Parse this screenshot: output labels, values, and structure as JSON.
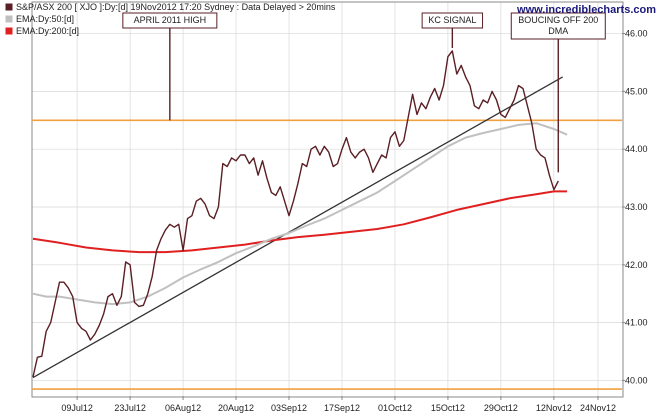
{
  "colors": {
    "price": "#5a1f24",
    "ema50": "#c0c0c0",
    "ema200": "#e02020",
    "hline": "#f0a040",
    "trend": "#333333",
    "grid": "#d8d8d8"
  },
  "chart_data": {
    "type": "line",
    "ylim": [
      39.8,
      46.2
    ],
    "xlim": [
      0,
      128
    ],
    "y_axis_position": "right",
    "grid": true,
    "legend_position": "top-left",
    "legend": [
      {
        "key": "price",
        "label": "S&P/ASX 200 [ XJO ]:Dy:[d]  19Nov2012 17:20  Sydney : Data Delayed > 20mins"
      },
      {
        "key": "ema50",
        "label": "EMA:Dy:50:[d]"
      },
      {
        "key": "ema200",
        "label": "EMA:Dy:200:[d]"
      }
    ],
    "watermark": "www.incrediblecharts.com",
    "y_ticks": [
      {
        "v": 40,
        "label": "40.00"
      },
      {
        "v": 41,
        "label": "41.00"
      },
      {
        "v": 42,
        "label": "42.00"
      },
      {
        "v": 43,
        "label": "43.00"
      },
      {
        "v": 44,
        "label": "44.00"
      },
      {
        "v": 45,
        "label": "45.00"
      },
      {
        "v": 46,
        "label": "46.00"
      }
    ],
    "x_ticks": [
      {
        "x": 10,
        "label": "09Jul12"
      },
      {
        "x": 22,
        "label": "23Jul12"
      },
      {
        "x": 34,
        "label": "06Aug12"
      },
      {
        "x": 46,
        "label": "20Aug12"
      },
      {
        "x": 58,
        "label": "03Sep12"
      },
      {
        "x": 70,
        "label": "17Sep12"
      },
      {
        "x": 82,
        "label": "01Oct12"
      },
      {
        "x": 94,
        "label": "15Oct12"
      },
      {
        "x": 106,
        "label": "29Oct12"
      },
      {
        "x": 118,
        "label": "12Nov12"
      },
      {
        "x": 128,
        "label": "24Nov12"
      }
    ],
    "series": [
      {
        "key": "price",
        "points": [
          [
            0,
            40.06
          ],
          [
            1,
            40.4
          ],
          [
            2,
            40.42
          ],
          [
            3,
            40.85
          ],
          [
            4,
            41.0
          ],
          [
            5,
            41.35
          ],
          [
            6,
            41.7
          ],
          [
            7,
            41.7
          ],
          [
            8,
            41.6
          ],
          [
            9,
            41.45
          ],
          [
            10,
            41.0
          ],
          [
            11,
            40.9
          ],
          [
            12,
            40.85
          ],
          [
            13,
            40.7
          ],
          [
            14,
            40.8
          ],
          [
            15,
            40.95
          ],
          [
            16,
            41.15
          ],
          [
            17,
            41.45
          ],
          [
            18,
            41.5
          ],
          [
            19,
            41.3
          ],
          [
            20,
            41.45
          ],
          [
            21,
            42.05
          ],
          [
            22,
            42.0
          ],
          [
            23,
            41.35
          ],
          [
            24,
            41.28
          ],
          [
            25,
            41.3
          ],
          [
            26,
            41.5
          ],
          [
            27,
            41.8
          ],
          [
            28,
            42.25
          ],
          [
            29,
            42.45
          ],
          [
            30,
            42.6
          ],
          [
            31,
            42.7
          ],
          [
            32,
            42.65
          ],
          [
            33,
            42.7
          ],
          [
            34,
            42.25
          ],
          [
            35,
            42.8
          ],
          [
            36,
            42.85
          ],
          [
            37,
            43.1
          ],
          [
            38,
            43.15
          ],
          [
            39,
            43.05
          ],
          [
            40,
            42.85
          ],
          [
            41,
            42.8
          ],
          [
            42,
            43.0
          ],
          [
            43,
            43.75
          ],
          [
            44,
            43.7
          ],
          [
            45,
            43.85
          ],
          [
            46,
            43.8
          ],
          [
            47,
            43.9
          ],
          [
            48,
            43.9
          ],
          [
            49,
            43.75
          ],
          [
            50,
            43.85
          ],
          [
            51,
            43.55
          ],
          [
            52,
            43.8
          ],
          [
            53,
            43.5
          ],
          [
            54,
            43.25
          ],
          [
            55,
            43.2
          ],
          [
            56,
            43.35
          ],
          [
            57,
            43.1
          ],
          [
            58,
            42.85
          ],
          [
            59,
            43.1
          ],
          [
            60,
            43.4
          ],
          [
            61,
            43.75
          ],
          [
            62,
            43.7
          ],
          [
            63,
            44.0
          ],
          [
            64,
            44.05
          ],
          [
            65,
            43.9
          ],
          [
            66,
            44.05
          ],
          [
            67,
            43.95
          ],
          [
            68,
            43.7
          ],
          [
            69,
            43.75
          ],
          [
            70,
            44.0
          ],
          [
            71,
            44.2
          ],
          [
            72,
            43.95
          ],
          [
            73,
            43.85
          ],
          [
            74,
            43.95
          ],
          [
            75,
            44.0
          ],
          [
            76,
            43.85
          ],
          [
            77,
            43.6
          ],
          [
            78,
            43.75
          ],
          [
            79,
            43.9
          ],
          [
            80,
            43.85
          ],
          [
            81,
            44.2
          ],
          [
            82,
            44.3
          ],
          [
            83,
            44.05
          ],
          [
            84,
            44.15
          ],
          [
            85,
            44.55
          ],
          [
            86,
            44.95
          ],
          [
            87,
            44.6
          ],
          [
            88,
            44.8
          ],
          [
            89,
            44.7
          ],
          [
            90,
            44.9
          ],
          [
            91,
            45.05
          ],
          [
            92,
            44.85
          ],
          [
            93,
            45.1
          ],
          [
            94,
            45.6
          ],
          [
            95,
            45.7
          ],
          [
            96,
            45.3
          ],
          [
            97,
            45.45
          ],
          [
            98,
            45.25
          ],
          [
            99,
            45.1
          ],
          [
            100,
            44.75
          ],
          [
            101,
            44.7
          ],
          [
            102,
            44.85
          ],
          [
            103,
            44.8
          ],
          [
            104,
            45.0
          ],
          [
            105,
            44.85
          ],
          [
            106,
            44.6
          ],
          [
            107,
            44.55
          ],
          [
            108,
            44.7
          ],
          [
            109,
            44.85
          ],
          [
            110,
            45.1
          ],
          [
            111,
            45.05
          ],
          [
            112,
            44.75
          ],
          [
            113,
            44.45
          ],
          [
            114,
            44.0
          ],
          [
            115,
            43.9
          ],
          [
            116,
            43.85
          ],
          [
            117,
            43.55
          ],
          [
            118,
            43.3
          ],
          [
            119,
            43.45
          ]
        ]
      },
      {
        "key": "ema50",
        "points": [
          [
            0,
            41.5
          ],
          [
            3,
            41.45
          ],
          [
            6,
            41.45
          ],
          [
            10,
            41.4
          ],
          [
            14,
            41.35
          ],
          [
            18,
            41.32
          ],
          [
            22,
            41.35
          ],
          [
            26,
            41.45
          ],
          [
            30,
            41.6
          ],
          [
            34,
            41.78
          ],
          [
            38,
            41.92
          ],
          [
            42,
            42.05
          ],
          [
            46,
            42.2
          ],
          [
            50,
            42.32
          ],
          [
            54,
            42.45
          ],
          [
            58,
            42.55
          ],
          [
            62,
            42.68
          ],
          [
            66,
            42.8
          ],
          [
            70,
            42.95
          ],
          [
            74,
            43.1
          ],
          [
            78,
            43.25
          ],
          [
            82,
            43.45
          ],
          [
            86,
            43.65
          ],
          [
            90,
            43.85
          ],
          [
            94,
            44.05
          ],
          [
            98,
            44.2
          ],
          [
            102,
            44.28
          ],
          [
            106,
            44.35
          ],
          [
            110,
            44.42
          ],
          [
            114,
            44.45
          ],
          [
            118,
            44.35
          ],
          [
            121,
            44.25
          ]
        ]
      },
      {
        "key": "ema200",
        "points": [
          [
            0,
            42.45
          ],
          [
            6,
            42.38
          ],
          [
            12,
            42.3
          ],
          [
            18,
            42.25
          ],
          [
            24,
            42.22
          ],
          [
            30,
            42.22
          ],
          [
            36,
            42.25
          ],
          [
            42,
            42.3
          ],
          [
            48,
            42.35
          ],
          [
            54,
            42.42
          ],
          [
            60,
            42.48
          ],
          [
            66,
            42.52
          ],
          [
            72,
            42.57
          ],
          [
            78,
            42.62
          ],
          [
            84,
            42.7
          ],
          [
            90,
            42.82
          ],
          [
            96,
            42.95
          ],
          [
            102,
            43.05
          ],
          [
            108,
            43.15
          ],
          [
            114,
            43.22
          ],
          [
            118,
            43.27
          ],
          [
            121,
            43.27
          ]
        ]
      }
    ],
    "hlines": [
      44.5,
      39.85
    ],
    "trendline": [
      [
        0,
        40.05
      ],
      [
        120,
        45.25
      ]
    ],
    "annotations": [
      {
        "text": "APRIL 2011 HIGH",
        "x": 31,
        "y": 44.5
      },
      {
        "text": "KC SIGNAL",
        "x": 95,
        "y": 45.75
      },
      {
        "text": [
          "BOUCING OFF 200",
          "DMA"
        ],
        "x": 119,
        "y": 43.6
      }
    ]
  }
}
